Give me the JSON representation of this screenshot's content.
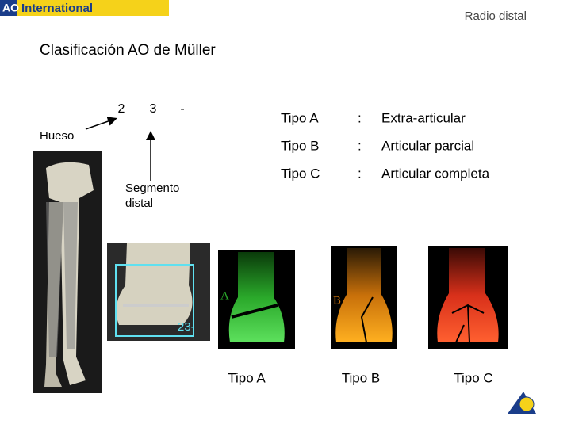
{
  "header": {
    "logo": {
      "brand": "AO",
      "name": "International"
    },
    "section": "Radio distal"
  },
  "title": "Clasificación AO de Müller",
  "code": {
    "parts": [
      "2",
      "3",
      "-"
    ],
    "bone_label": "Hueso",
    "segment_label": [
      "Segmento",
      "distal"
    ]
  },
  "types": {
    "rows": [
      [
        "Tipo A",
        ":",
        "Extra-articular"
      ],
      [
        "Tipo B",
        ":",
        "Articular parcial"
      ],
      [
        "Tipo C",
        ":",
        "Articular completa"
      ]
    ]
  },
  "images": {
    "bone_code": "23-",
    "panel_letters": [
      "A",
      "B"
    ],
    "captions": [
      "Tipo A",
      "Tipo B",
      "Tipo C"
    ]
  }
}
